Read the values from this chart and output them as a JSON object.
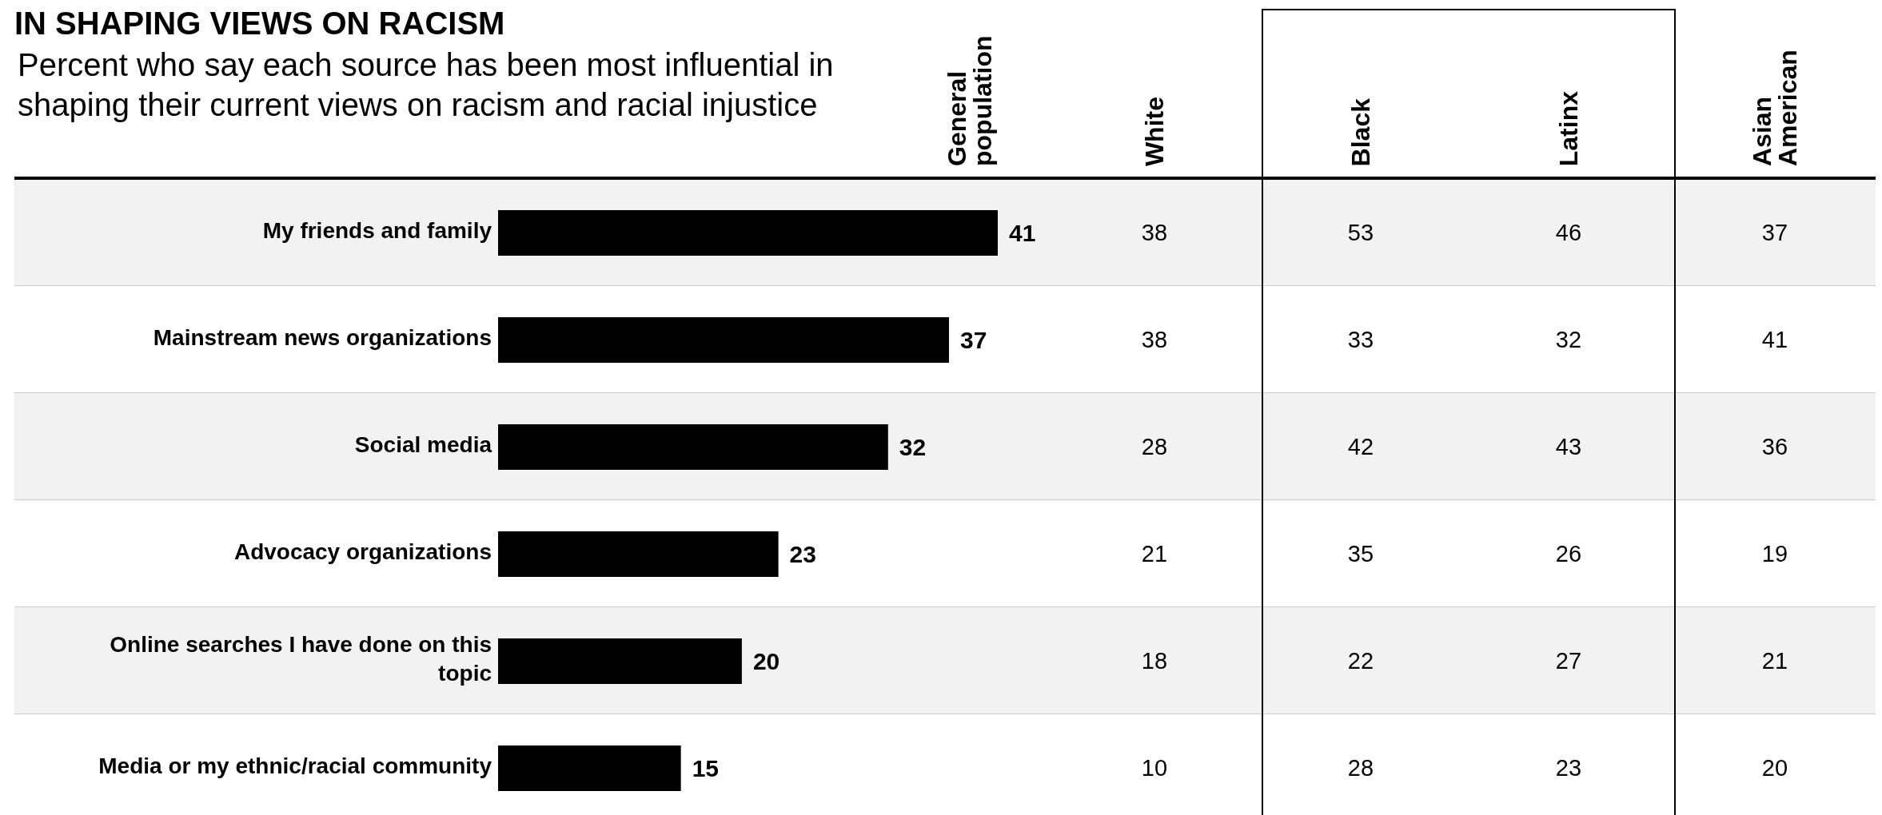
{
  "chart_data": [
    {
      "type": "bar",
      "orientation": "horizontal",
      "title": "IN SHAPING VIEWS ON RACISM",
      "subtitle": "Percent who say each source has been most influential in shaping their current views on racism and racial injustice",
      "categories": [
        "My friends and family",
        "Mainstream news organizations",
        "Social media",
        "Advocacy organizations",
        "Online searches I have done on this topic",
        "Media or my ethnic/racial community"
      ],
      "series": [
        {
          "name": "General population",
          "color": "#000000",
          "values": [
            41,
            37,
            32,
            23,
            20,
            15
          ]
        }
      ],
      "data_labels": true
    },
    {
      "type": "other",
      "title": "White",
      "values": [
        38,
        38,
        28,
        21,
        18,
        10
      ],
      "data_labels": true
    },
    {
      "type": "other",
      "title": "Black",
      "values": [
        53,
        33,
        42,
        35,
        22,
        28
      ],
      "data_labels": true
    },
    {
      "type": "other",
      "title": "Latinx",
      "values": [
        46,
        32,
        43,
        26,
        27,
        23
      ],
      "data_labels": true
    },
    {
      "type": "other",
      "title": "Asian American",
      "values": [
        37,
        41,
        36,
        19,
        21,
        20
      ],
      "data_labels": true
    }
  ]
}
